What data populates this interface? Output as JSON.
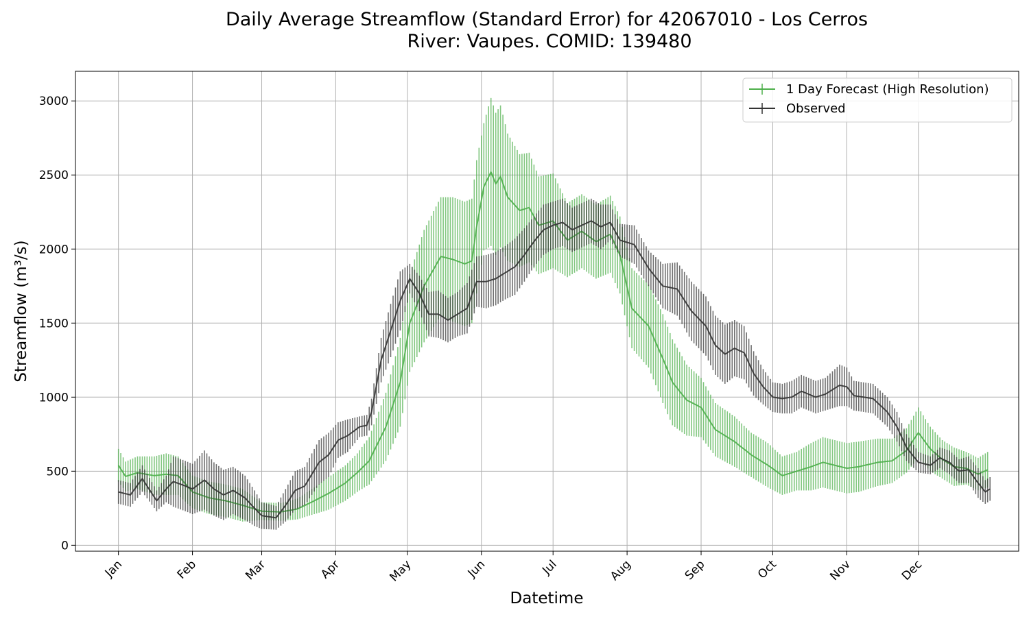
{
  "chart_data": {
    "type": "line",
    "title": [
      "Daily Average Streamflow (Standard Error) for 42067010 - Los Cerros",
      "River: Vaupes. COMID: 139480"
    ],
    "xlabel": "Datetime",
    "ylabel": "Streamflow (m³/s)",
    "ylim": [
      -40,
      3200
    ],
    "y_ticks": [
      0,
      500,
      1000,
      1500,
      2000,
      2500,
      3000
    ],
    "x_day_range": [
      -18,
      377
    ],
    "x_ticks": [
      {
        "label": "Jan",
        "day": 0
      },
      {
        "label": "Feb",
        "day": 31
      },
      {
        "label": "Mar",
        "day": 60
      },
      {
        "label": "Apr",
        "day": 91
      },
      {
        "label": "May",
        "day": 121
      },
      {
        "label": "Jun",
        "day": 152
      },
      {
        "label": "Jul",
        "day": 182
      },
      {
        "label": "Aug",
        "day": 213
      },
      {
        "label": "Sep",
        "day": 244
      },
      {
        "label": "Oct",
        "day": 274
      },
      {
        "label": "Nov",
        "day": 305
      },
      {
        "label": "Dec",
        "day": 335
      }
    ],
    "grid": true,
    "legend_position": "top-right",
    "series": [
      {
        "name": "1 Day Forecast (High Resolution)",
        "color": "#4daf4a",
        "anchors": [
          [
            0,
            540,
            110
          ],
          [
            3,
            465,
            100
          ],
          [
            8,
            490,
            110
          ],
          [
            15,
            470,
            130
          ],
          [
            20,
            480,
            140
          ],
          [
            25,
            470,
            130
          ],
          [
            31,
            360,
            110
          ],
          [
            38,
            320,
            110
          ],
          [
            45,
            300,
            110
          ],
          [
            52,
            270,
            110
          ],
          [
            60,
            230,
            60
          ],
          [
            68,
            225,
            60
          ],
          [
            75,
            245,
            70
          ],
          [
            82,
            300,
            90
          ],
          [
            88,
            350,
            110
          ],
          [
            95,
            420,
            120
          ],
          [
            100,
            490,
            130
          ],
          [
            105,
            570,
            160
          ],
          [
            112,
            800,
            230
          ],
          [
            118,
            1100,
            300
          ],
          [
            122,
            1500,
            330
          ],
          [
            128,
            1750,
            380
          ],
          [
            135,
            1950,
            400
          ],
          [
            140,
            1930,
            420
          ],
          [
            145,
            1900,
            420
          ],
          [
            148,
            1920,
            420
          ],
          [
            150,
            2150,
            450
          ],
          [
            153,
            2420,
            430
          ],
          [
            156,
            2520,
            500
          ],
          [
            158,
            2440,
            480
          ],
          [
            160,
            2490,
            480
          ],
          [
            163,
            2350,
            430
          ],
          [
            168,
            2260,
            380
          ],
          [
            172,
            2280,
            370
          ],
          [
            176,
            2160,
            330
          ],
          [
            182,
            2190,
            320
          ],
          [
            188,
            2060,
            250
          ],
          [
            194,
            2120,
            250
          ],
          [
            200,
            2050,
            250
          ],
          [
            206,
            2100,
            260
          ],
          [
            210,
            1960,
            260
          ],
          [
            215,
            1600,
            270
          ],
          [
            222,
            1480,
            280
          ],
          [
            228,
            1260,
            300
          ],
          [
            232,
            1100,
            290
          ],
          [
            238,
            980,
            240
          ],
          [
            244,
            930,
            200
          ],
          [
            250,
            780,
            180
          ],
          [
            258,
            700,
            170
          ],
          [
            265,
            610,
            150
          ],
          [
            272,
            540,
            150
          ],
          [
            278,
            470,
            130
          ],
          [
            284,
            500,
            130
          ],
          [
            290,
            530,
            160
          ],
          [
            295,
            560,
            170
          ],
          [
            300,
            540,
            170
          ],
          [
            305,
            520,
            170
          ],
          [
            310,
            530,
            170
          ],
          [
            318,
            560,
            160
          ],
          [
            324,
            570,
            150
          ],
          [
            330,
            640,
            150
          ],
          [
            335,
            760,
            170
          ],
          [
            340,
            650,
            150
          ],
          [
            345,
            580,
            130
          ],
          [
            350,
            530,
            130
          ],
          [
            355,
            520,
            110
          ],
          [
            360,
            480,
            110
          ],
          [
            364,
            510,
            120
          ]
        ]
      },
      {
        "name": "Observed",
        "color": "#333333",
        "anchors": [
          [
            0,
            360,
            80
          ],
          [
            5,
            340,
            80
          ],
          [
            10,
            450,
            90
          ],
          [
            16,
            300,
            70
          ],
          [
            20,
            380,
            90
          ],
          [
            23,
            430,
            170
          ],
          [
            28,
            400,
            170
          ],
          [
            31,
            380,
            170
          ],
          [
            36,
            440,
            200
          ],
          [
            40,
            380,
            180
          ],
          [
            44,
            340,
            170
          ],
          [
            48,
            370,
            160
          ],
          [
            53,
            320,
            150
          ],
          [
            57,
            250,
            120
          ],
          [
            60,
            200,
            90
          ],
          [
            66,
            185,
            80
          ],
          [
            70,
            270,
            110
          ],
          [
            74,
            370,
            130
          ],
          [
            78,
            400,
            130
          ],
          [
            84,
            560,
            150
          ],
          [
            88,
            610,
            150
          ],
          [
            92,
            710,
            120
          ],
          [
            96,
            740,
            110
          ],
          [
            101,
            800,
            70
          ],
          [
            104,
            810,
            70
          ],
          [
            106,
            900,
            90
          ],
          [
            110,
            1250,
            150
          ],
          [
            114,
            1450,
            180
          ],
          [
            118,
            1650,
            200
          ],
          [
            122,
            1800,
            100
          ],
          [
            126,
            1700,
            120
          ],
          [
            130,
            1560,
            150
          ],
          [
            134,
            1560,
            160
          ],
          [
            138,
            1520,
            150
          ],
          [
            142,
            1560,
            150
          ],
          [
            146,
            1600,
            170
          ],
          [
            150,
            1780,
            170
          ],
          [
            154,
            1780,
            180
          ],
          [
            158,
            1800,
            180
          ],
          [
            162,
            1840,
            180
          ],
          [
            166,
            1880,
            190
          ],
          [
            170,
            1960,
            180
          ],
          [
            174,
            2050,
            170
          ],
          [
            178,
            2130,
            170
          ],
          [
            182,
            2160,
            160
          ],
          [
            186,
            2180,
            160
          ],
          [
            190,
            2130,
            150
          ],
          [
            194,
            2160,
            150
          ],
          [
            198,
            2190,
            150
          ],
          [
            202,
            2150,
            150
          ],
          [
            206,
            2180,
            120
          ],
          [
            210,
            2060,
            110
          ],
          [
            216,
            2030,
            130
          ],
          [
            222,
            1870,
            120
          ],
          [
            228,
            1750,
            150
          ],
          [
            234,
            1730,
            180
          ],
          [
            240,
            1580,
            200
          ],
          [
            246,
            1480,
            200
          ],
          [
            250,
            1350,
            200
          ],
          [
            254,
            1290,
            200
          ],
          [
            258,
            1330,
            190
          ],
          [
            262,
            1300,
            180
          ],
          [
            266,
            1160,
            150
          ],
          [
            270,
            1070,
            120
          ],
          [
            274,
            1000,
            100
          ],
          [
            278,
            990,
            100
          ],
          [
            282,
            1000,
            110
          ],
          [
            286,
            1040,
            110
          ],
          [
            292,
            1000,
            110
          ],
          [
            296,
            1020,
            110
          ],
          [
            302,
            1080,
            140
          ],
          [
            305,
            1070,
            130
          ],
          [
            308,
            1010,
            100
          ],
          [
            312,
            1000,
            100
          ],
          [
            316,
            990,
            100
          ],
          [
            322,
            900,
            100
          ],
          [
            326,
            800,
            100
          ],
          [
            330,
            660,
            90
          ],
          [
            335,
            560,
            70
          ],
          [
            340,
            540,
            60
          ],
          [
            344,
            590,
            70
          ],
          [
            348,
            560,
            80
          ],
          [
            352,
            500,
            80
          ],
          [
            356,
            510,
            90
          ],
          [
            360,
            420,
            100
          ],
          [
            363,
            360,
            80
          ],
          [
            365,
            380,
            80
          ]
        ]
      }
    ]
  }
}
